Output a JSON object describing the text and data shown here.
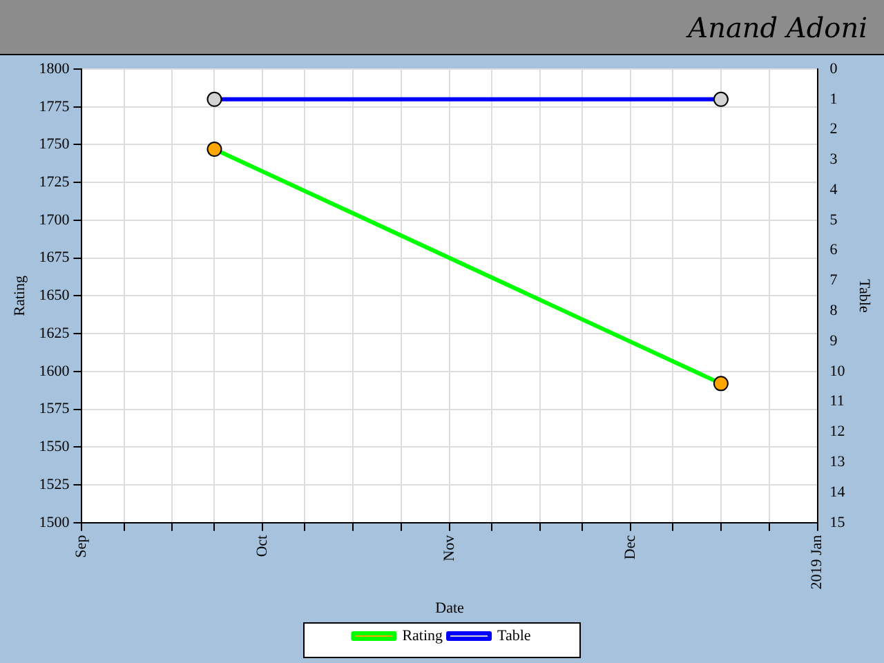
{
  "chart_data": {
    "type": "line",
    "title": "Anand Adoni",
    "xlabel": "Date",
    "ylabel": "Rating",
    "y2label": "Table",
    "x": [
      "2018-09-23",
      "2018-12-16"
    ],
    "series": [
      {
        "name": "Rating",
        "color": "#00ff00",
        "colors": [
          "#ffa500",
          "#ffa500"
        ],
        "values": [
          1747,
          1592
        ]
      },
      {
        "name": "Table",
        "color": "#0000ff",
        "colors": [
          "#d3d3d3",
          "#d3d3d3"
        ],
        "axis": "y2",
        "values": [
          1,
          1
        ]
      }
    ],
    "xlim": [
      "2018-09-01",
      "2019-01-01"
    ],
    "xticks": [
      {
        "value": "2018-09-01",
        "label": "Sep"
      },
      {
        "value": "2018-09-08",
        "label": null
      },
      {
        "value": "2018-09-16",
        "label": null
      },
      {
        "value": "2018-09-23",
        "label": null
      },
      {
        "value": "2018-10-01",
        "label": "Oct"
      },
      {
        "value": "2018-10-08",
        "label": null
      },
      {
        "value": "2018-10-16",
        "label": null
      },
      {
        "value": "2018-10-24",
        "label": null
      },
      {
        "value": "2018-11-01",
        "label": "Nov"
      },
      {
        "value": "2018-11-08",
        "label": null
      },
      {
        "value": "2018-11-16",
        "label": null
      },
      {
        "value": "2018-11-23",
        "label": null
      },
      {
        "value": "2018-12-01",
        "label": "Dec"
      },
      {
        "value": "2018-12-08",
        "label": null
      },
      {
        "value": "2018-12-16",
        "label": null
      },
      {
        "value": "2018-12-24",
        "label": null
      },
      {
        "value": "2019-01-01",
        "label": "2019 Jan"
      }
    ],
    "ylim": [
      1500,
      1800
    ],
    "yticks": [
      1500,
      1525,
      1550,
      1575,
      1600,
      1625,
      1650,
      1675,
      1700,
      1725,
      1750,
      1775,
      1800
    ],
    "y2lim": [
      15,
      0
    ],
    "y2ticks": [
      0,
      1,
      2,
      3,
      4,
      5,
      6,
      7,
      8,
      9,
      10,
      11,
      12,
      13,
      14,
      15
    ],
    "grid": true,
    "legend": "bottom",
    "marker": "circle",
    "line_style": "solid"
  }
}
